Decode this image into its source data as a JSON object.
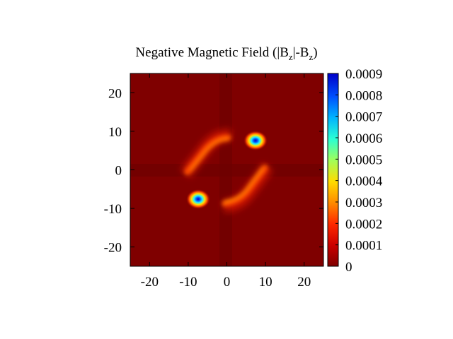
{
  "chart_data": {
    "type": "heatmap",
    "title": {
      "main": "Negative Magnetic Field (|B",
      "sub1": "z",
      "mid": "|-B",
      "sub2": "z",
      "end": ")"
    },
    "xlim": [
      -25,
      25
    ],
    "ylim": [
      -25,
      25
    ],
    "x_ticks": [
      -20,
      -10,
      0,
      10,
      20
    ],
    "x_tick_labels": [
      "-20",
      "-10",
      "0",
      "10",
      "20"
    ],
    "y_ticks": [
      20,
      10,
      0,
      -10,
      -20
    ],
    "y_tick_labels": [
      "20",
      "10",
      "0",
      "-10",
      "-20"
    ],
    "colorbar": {
      "range": [
        0,
        0.0009
      ],
      "ticks": [
        0.0009,
        0.0008,
        0.0007,
        0.0006,
        0.0005,
        0.0004,
        0.0003,
        0.0002,
        0.0001,
        0
      ],
      "tick_labels": [
        "0.0009",
        "0.0008",
        "0.0007",
        "0.0006",
        "0.0005",
        "0.0004",
        "0.0003",
        "0.0002",
        "0.0001",
        "0"
      ],
      "colormap": "jet"
    },
    "features": [
      {
        "name": "upper-right lobe",
        "x": 7.5,
        "y": 7.5,
        "peak": 0.0009
      },
      {
        "name": "lower-left lobe",
        "x": -7.5,
        "y": -7.5,
        "peak": 0.0009
      },
      {
        "name": "upper-left arc",
        "x": -5,
        "y": 5,
        "peak": 0.0003
      },
      {
        "name": "lower-right arc",
        "x": 5,
        "y": -5,
        "peak": 0.0003
      }
    ],
    "background_value": 0,
    "grid": false
  }
}
